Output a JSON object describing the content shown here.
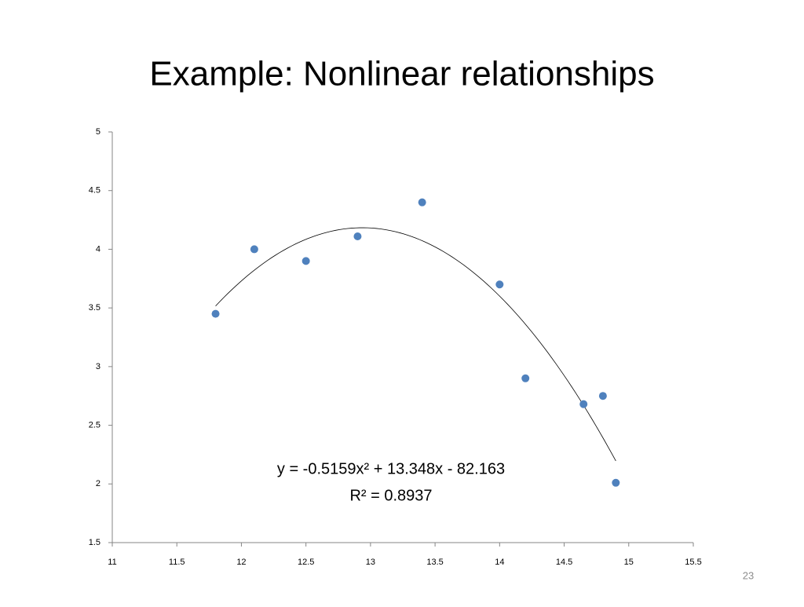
{
  "title": "Example: Nonlinear relationships",
  "page_number": "23",
  "chart_data": {
    "type": "scatter",
    "x": [
      11.8,
      12.1,
      12.5,
      12.9,
      13.4,
      14.0,
      14.2,
      14.65,
      14.8,
      14.9
    ],
    "series": [
      {
        "color": "#4f81bd",
        "values": [
          3.45,
          4.0,
          3.9,
          4.11,
          4.4,
          3.7,
          2.9,
          2.68,
          2.75,
          2.01
        ]
      }
    ],
    "xlim": [
      11,
      15.5
    ],
    "xticks": [
      11,
      11.5,
      12,
      12.5,
      13,
      13.5,
      14,
      14.5,
      15,
      15.5
    ],
    "ylim": [
      1.5,
      5
    ],
    "yticks": [
      1.5,
      2,
      2.5,
      3,
      3.5,
      4,
      4.5,
      5
    ],
    "grid": false,
    "trendline": {
      "type": "polynomial",
      "order": 2,
      "color": "#000000",
      "labels": [
        "y = -0.5159x² + 13.348x - 82.163",
        "R² = 0.8937"
      ]
    }
  }
}
